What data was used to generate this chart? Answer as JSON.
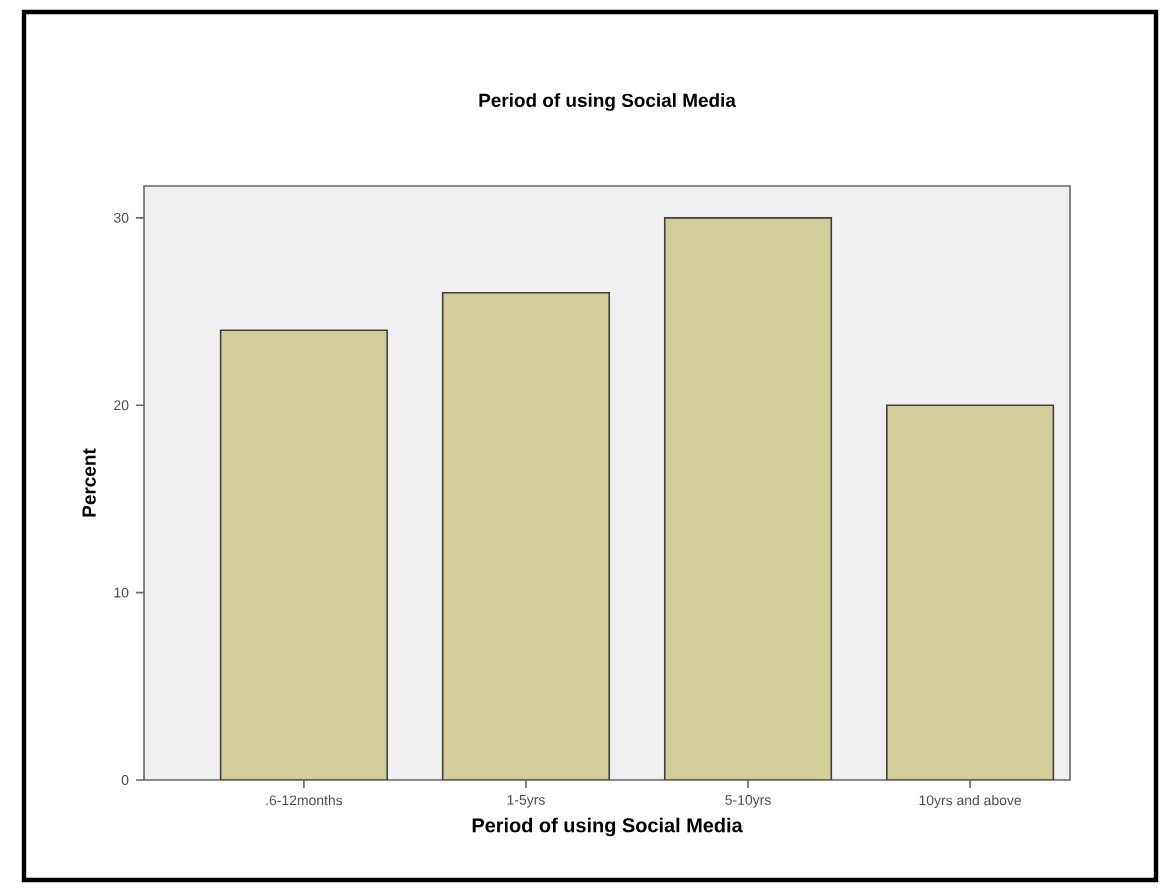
{
  "chart_data": {
    "type": "bar",
    "title": "Period of using Social Media",
    "xlabel": "Period of using Social Media",
    "ylabel": "Percent",
    "categories": [
      ".6-12months",
      "1-5yrs",
      "5-10yrs",
      "10yrs and above"
    ],
    "values": [
      24,
      26,
      30,
      20
    ],
    "color": "#d3ce98",
    "ylim": [
      0,
      31.7
    ],
    "yticks": [
      0,
      10,
      20,
      30
    ],
    "grid": false
  }
}
